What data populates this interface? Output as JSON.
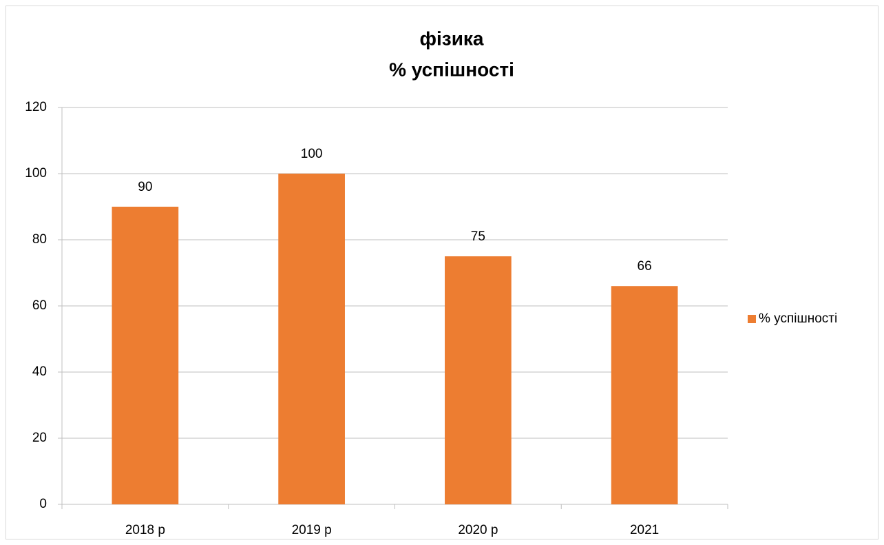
{
  "chart_data": {
    "type": "bar",
    "title": [
      "фізика",
      "% успішності"
    ],
    "categories": [
      "2018 р",
      "2019 р",
      "2020 р",
      "2021"
    ],
    "series": [
      {
        "name": "% успішності",
        "color": "#ed7d31",
        "values": [
          90,
          100,
          75,
          66
        ]
      }
    ],
    "ylim": [
      0,
      120
    ],
    "yticks": [
      0,
      20,
      40,
      60,
      80,
      100,
      120
    ],
    "grid": true,
    "legend": "right"
  }
}
